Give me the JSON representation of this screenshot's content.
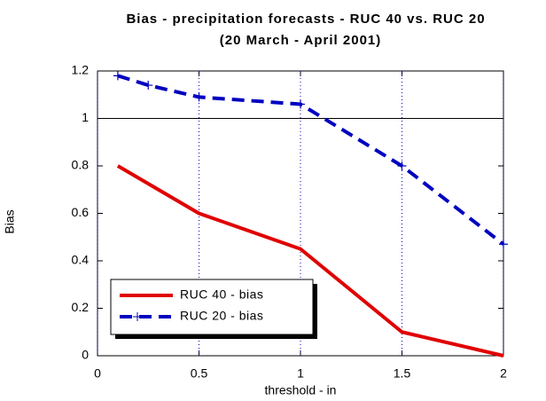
{
  "chart_data": {
    "type": "line",
    "title": "Bias - precipitation forecasts - RUC 40 vs. RUC 20",
    "subtitle": "(20 March - April 2001)",
    "x_label": "threshold - in",
    "y_label": "Bias",
    "xlim": [
      0,
      2
    ],
    "xticks": [
      0,
      0.5,
      1,
      1.5,
      2
    ],
    "ylim": [
      0,
      1.2
    ],
    "yticks": [
      0,
      0.2,
      0.4,
      0.6,
      0.8,
      1,
      1.2
    ],
    "grid": true,
    "reference_line": 1,
    "legend": "lower left",
    "series": [
      {
        "name": "RUC 40 - bias",
        "color": "#e00000",
        "dashed": false,
        "markers": false,
        "x": [
          0.1,
          0.5,
          1,
          1.5,
          2
        ],
        "values": [
          0.8,
          0.6,
          0.45,
          0.1,
          0.0
        ]
      },
      {
        "name": "RUC 20 - bias",
        "color": "#0000c0",
        "dashed": true,
        "markers": true,
        "x": [
          0.1,
          0.25,
          0.5,
          1,
          1.5,
          2
        ],
        "values": [
          1.18,
          1.14,
          1.09,
          1.06,
          0.8,
          0.47
        ]
      }
    ]
  }
}
